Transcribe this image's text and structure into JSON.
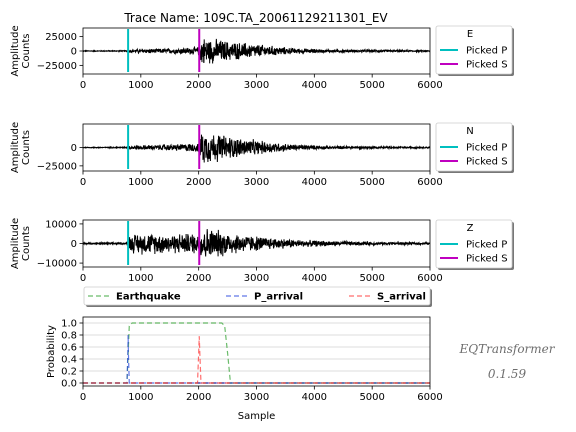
{
  "title": "Trace Name: 109C.TA_20061129211301_EV",
  "brand": {
    "name": "EQTransformer",
    "version": "0.1.59"
  },
  "colors": {
    "picked_p": "#00bfbf",
    "picked_s": "#bf00bf",
    "trace": "#000000",
    "earthquake": "#2ca02c",
    "p_arrival": "#1f3fdf",
    "s_arrival": "#ff3030"
  },
  "chart_data": [
    {
      "type": "line",
      "channel": "E",
      "ylabel": "Amplitude\nCounts",
      "xlim": [
        0,
        6000
      ],
      "ylim": [
        -40000,
        40000
      ],
      "xticks": [
        "0",
        "1000",
        "2000",
        "3000",
        "4000",
        "5000",
        "6000"
      ],
      "yticks": [
        {
          "v": 25000,
          "label": "25000"
        },
        {
          "v": 0,
          "label": "0"
        },
        {
          "v": -25000,
          "label": "−25000"
        }
      ],
      "picked_p": 780,
      "picked_s": 2010,
      "envelope": [
        [
          0,
          800
        ],
        [
          780,
          1000
        ],
        [
          800,
          3500
        ],
        [
          1500,
          5000
        ],
        [
          2000,
          8000
        ],
        [
          2010,
          28000
        ],
        [
          2250,
          24000
        ],
        [
          2600,
          18000
        ],
        [
          3100,
          12000
        ],
        [
          3600,
          6000
        ],
        [
          4200,
          3000
        ],
        [
          6000,
          1200
        ]
      ],
      "legend": {
        "title": "E",
        "entries": [
          "Picked P",
          "Picked S"
        ]
      }
    },
    {
      "type": "line",
      "channel": "N",
      "ylabel": "Amplitude\nCounts",
      "xlim": [
        0,
        6000
      ],
      "ylim": [
        -32000,
        32000
      ],
      "xticks": [
        "0",
        "1000",
        "2000",
        "3000",
        "4000",
        "5000",
        "6000"
      ],
      "yticks": [
        {
          "v": 0,
          "label": "0"
        },
        {
          "v": -25000,
          "label": "−25000"
        }
      ],
      "picked_p": 780,
      "picked_s": 2010,
      "envelope": [
        [
          0,
          700
        ],
        [
          780,
          900
        ],
        [
          800,
          3000
        ],
        [
          1500,
          4500
        ],
        [
          2000,
          7000
        ],
        [
          2010,
          26000
        ],
        [
          2300,
          22000
        ],
        [
          2600,
          16000
        ],
        [
          3100,
          10000
        ],
        [
          3600,
          5000
        ],
        [
          4200,
          2500
        ],
        [
          6000,
          1000
        ]
      ],
      "legend": {
        "title": "N",
        "entries": [
          "Picked P",
          "Picked S"
        ]
      }
    },
    {
      "type": "line",
      "channel": "Z",
      "ylabel": "Amplitude\nCounts",
      "xlim": [
        0,
        6000
      ],
      "ylim": [
        -12000,
        12000
      ],
      "xticks": [
        "0",
        "1000",
        "2000",
        "3000",
        "4000",
        "5000",
        "6000"
      ],
      "yticks": [
        {
          "v": 10000,
          "label": "10000"
        },
        {
          "v": 0,
          "label": "0"
        },
        {
          "v": -10000,
          "label": "−10000"
        }
      ],
      "picked_p": 780,
      "picked_s": 2010,
      "envelope": [
        [
          0,
          400
        ],
        [
          780,
          600
        ],
        [
          800,
          5000
        ],
        [
          1000,
          6000
        ],
        [
          1500,
          5500
        ],
        [
          2000,
          6000
        ],
        [
          2010,
          10000
        ],
        [
          2300,
          8000
        ],
        [
          2700,
          5500
        ],
        [
          3200,
          3500
        ],
        [
          3800,
          2000
        ],
        [
          4500,
          1200
        ],
        [
          6000,
          700
        ]
      ],
      "legend": {
        "title": "Z",
        "entries": [
          "Picked P",
          "Picked S"
        ]
      }
    },
    {
      "type": "line",
      "xlabel": "Sample",
      "ylabel": "Probability",
      "xlim": [
        0,
        6000
      ],
      "ylim": [
        -0.05,
        1.1
      ],
      "xticks": [
        "0",
        "1000",
        "2000",
        "3000",
        "4000",
        "5000",
        "6000"
      ],
      "yticks": [
        {
          "v": 0.0,
          "label": "0.0"
        },
        {
          "v": 0.2,
          "label": "0.2"
        },
        {
          "v": 0.4,
          "label": "0.4"
        },
        {
          "v": 0.6,
          "label": "0.6"
        },
        {
          "v": 0.8,
          "label": "0.8"
        },
        {
          "v": 1.0,
          "label": "1.0"
        }
      ],
      "grid": true,
      "legend": {
        "entries": [
          "Earthquake",
          "P_arrival",
          "S_arrival"
        ],
        "placement": "top"
      },
      "series": [
        {
          "name": "Earthquake",
          "x": [
            0,
            760,
            800,
            850,
            2400,
            2450,
            2500,
            2550,
            6000
          ],
          "values": [
            0,
            0,
            0.95,
            1.0,
            1.0,
            0.95,
            0.5,
            0,
            0
          ]
        },
        {
          "name": "P_arrival",
          "x": [
            0,
            760,
            775,
            780,
            785,
            800,
            6000
          ],
          "values": [
            0,
            0,
            0.5,
            0.8,
            0.5,
            0,
            0
          ]
        },
        {
          "name": "S_arrival",
          "x": [
            0,
            1980,
            2000,
            2010,
            2020,
            2040,
            6000
          ],
          "values": [
            0,
            0,
            0.5,
            0.78,
            0.5,
            0,
            0
          ]
        }
      ]
    }
  ]
}
